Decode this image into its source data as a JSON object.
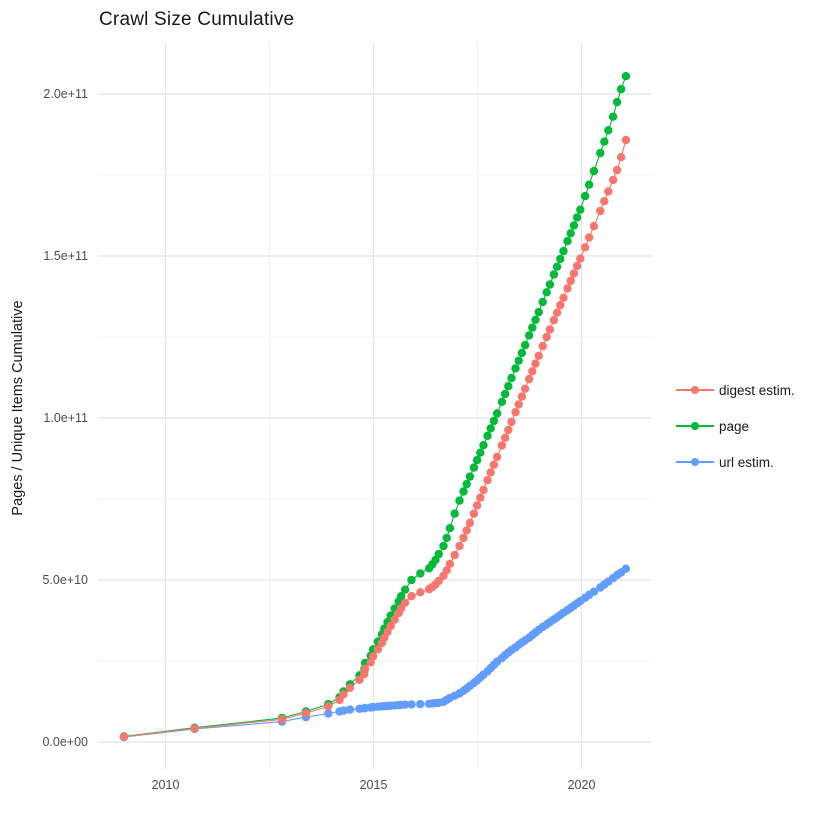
{
  "title": "Crawl Size Cumulative",
  "axes": {
    "y_title": "Pages / Unique Items Cumulative",
    "y_ticks": [
      "0.0e+00",
      "5.0e+10",
      "1.0e+11",
      "1.5e+11",
      "2.0e+11"
    ],
    "y_tick_values_e9": [
      0,
      50,
      100,
      150,
      200
    ],
    "y_minor_e9": [
      25,
      75,
      125,
      175
    ],
    "x_ticks": [
      "2010",
      "2015",
      "2020"
    ],
    "x_tick_values": [
      2010,
      2015,
      2020
    ],
    "x_minor": [
      2012.5,
      2017.5
    ]
  },
  "legend": {
    "items": [
      {
        "label": "digest estim.",
        "color": "#F8766D"
      },
      {
        "label": "page",
        "color": "#00BA38"
      },
      {
        "label": "url estim.",
        "color": "#619CFF"
      }
    ]
  },
  "chart_data": {
    "type": "scatter",
    "style": "points connected by thin lines",
    "title": "Crawl Size Cumulative",
    "xlabel": "",
    "ylabel": "Pages / Unique Items Cumulative",
    "x_unit": "year (crawl date)",
    "y_unit": "1e9 items (values_e9 are billions)",
    "xlim": [
      2008.4,
      2021.7
    ],
    "ylim_e9": [
      -9,
      216
    ],
    "grid": "on",
    "legend_position": "right",
    "x": [
      2009.0,
      2010.7,
      2012.8,
      2013.375,
      2013.913,
      2014.183,
      2014.279,
      2014.433,
      2014.663,
      2014.779,
      2014.798,
      2014.933,
      2014.99,
      2015.106,
      2015.202,
      2015.26,
      2015.337,
      2015.413,
      2015.51,
      2015.606,
      2015.663,
      2015.76,
      2015.913,
      2016.125,
      2016.337,
      2016.413,
      2016.49,
      2016.567,
      2016.683,
      2016.76,
      2016.837,
      2016.952,
      2017.067,
      2017.163,
      2017.24,
      2017.317,
      2017.413,
      2017.49,
      2017.567,
      2017.644,
      2017.74,
      2017.817,
      2017.894,
      2017.971,
      2018.087,
      2018.163,
      2018.24,
      2018.317,
      2018.413,
      2018.49,
      2018.567,
      2018.644,
      2018.74,
      2018.817,
      2018.894,
      2018.971,
      2019.067,
      2019.163,
      2019.24,
      2019.337,
      2019.413,
      2019.49,
      2019.567,
      2019.663,
      2019.74,
      2019.817,
      2019.894,
      2019.971,
      2020.087,
      2020.183,
      2020.298,
      2020.452,
      2020.548,
      2020.644,
      2020.76,
      2020.856,
      2020.952,
      2021.067
    ],
    "series": [
      {
        "name": "digest estim.",
        "color": "#F8766D",
        "values_e9": [
          1.6,
          4.2,
          7.0,
          8.9,
          11.0,
          13.0,
          14.7,
          16.7,
          19.2,
          21.0,
          22.6,
          24.6,
          26.4,
          28.6,
          30.6,
          32.2,
          34.0,
          35.8,
          37.8,
          39.8,
          41.2,
          43.0,
          45.0,
          46.2,
          47.2,
          47.8,
          48.6,
          49.7,
          51.3,
          53.0,
          55.0,
          57.7,
          60.5,
          63.0,
          65.3,
          67.6,
          70.5,
          73.0,
          75.4,
          77.8,
          80.8,
          83.2,
          85.6,
          88.0,
          91.5,
          93.9,
          96.3,
          98.8,
          101.8,
          104.2,
          106.6,
          109.0,
          112.0,
          114.4,
          116.8,
          119.2,
          122.2,
          125.0,
          127.3,
          130.2,
          132.5,
          134.8,
          137.1,
          140.0,
          142.3,
          144.6,
          146.9,
          149.2,
          152.7,
          155.7,
          159.2,
          163.9,
          166.9,
          169.9,
          173.5,
          176.5,
          180.5,
          185.8
        ]
      },
      {
        "name": "page",
        "color": "#00BA38",
        "values_e9": [
          1.7,
          4.4,
          7.4,
          9.4,
          11.7,
          13.8,
          15.6,
          17.8,
          20.6,
          22.6,
          24.4,
          26.6,
          28.6,
          31.0,
          33.2,
          35.0,
          37.0,
          39.0,
          41.2,
          43.4,
          45.0,
          47.0,
          50.0,
          52.0,
          53.6,
          54.8,
          56.2,
          58.0,
          60.5,
          63.0,
          66.0,
          70.5,
          74.5,
          77.3,
          79.6,
          81.9,
          84.7,
          87.0,
          89.3,
          91.6,
          94.5,
          96.8,
          99.1,
          101.4,
          105.0,
          107.4,
          109.8,
          112.3,
          115.3,
          117.7,
          120.1,
          122.5,
          125.5,
          127.9,
          130.3,
          132.7,
          135.8,
          138.8,
          141.2,
          144.3,
          146.7,
          149.1,
          151.5,
          154.6,
          157.0,
          159.4,
          161.9,
          164.3,
          168.5,
          172.0,
          176.2,
          181.8,
          185.3,
          188.8,
          193.0,
          197.5,
          201.5,
          205.5
        ]
      },
      {
        "name": "url estim.",
        "color": "#619CFF",
        "values_e9": [
          1.5,
          4.0,
          6.3,
          7.7,
          8.8,
          9.4,
          9.7,
          10.0,
          10.25,
          10.4,
          10.5,
          10.65,
          10.75,
          10.9,
          11.0,
          11.05,
          11.1,
          11.2,
          11.3,
          11.4,
          11.45,
          11.5,
          11.6,
          11.7,
          11.8,
          11.9,
          12.0,
          12.1,
          12.4,
          13.0,
          13.6,
          14.3,
          15.0,
          15.8,
          16.5,
          17.3,
          18.2,
          19.0,
          19.9,
          20.8,
          21.8,
          22.8,
          23.8,
          24.8,
          25.9,
          26.8,
          27.6,
          28.4,
          29.2,
          30.0,
          30.7,
          31.4,
          32.2,
          33.0,
          33.8,
          34.6,
          35.5,
          36.3,
          37.0,
          37.8,
          38.5,
          39.2,
          39.9,
          40.7,
          41.4,
          42.1,
          42.8,
          43.5,
          44.5,
          45.4,
          46.4,
          47.7,
          48.6,
          49.5,
          50.6,
          51.5,
          52.3,
          53.5
        ]
      }
    ]
  }
}
